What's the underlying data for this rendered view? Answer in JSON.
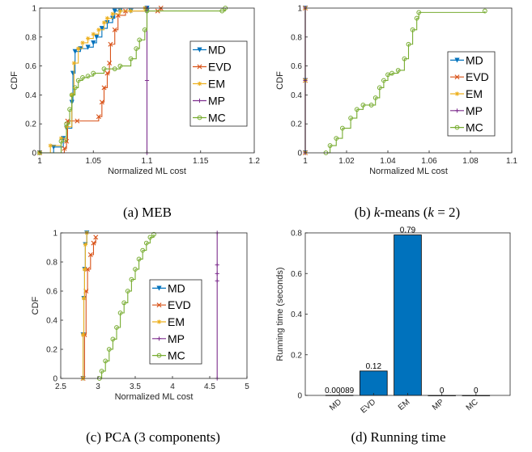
{
  "colors": {
    "MD": "#0072BD",
    "EVD": "#D95319",
    "EM": "#EDB120",
    "MP": "#7E2F8E",
    "MC": "#77AC30",
    "bar": "#0072BD"
  },
  "chart_data": [
    {
      "id": "a",
      "type": "line",
      "caption": "(a) MEB",
      "xlabel": "Normalized ML cost",
      "ylabel": "CDF",
      "xlim": [
        1,
        1.2
      ],
      "ylim": [
        0,
        1
      ],
      "xticks": [
        "1",
        "1.05",
        "1.1",
        "1.15",
        "1.2"
      ],
      "yticks": [
        "0",
        "0.2",
        "0.4",
        "0.6",
        "0.8",
        "1"
      ],
      "legend": "right",
      "series": [
        {
          "name": "MD",
          "x": [
            1.0,
            1.013,
            1.022,
            1.025,
            1.03,
            1.031,
            1.033,
            1.038,
            1.045,
            1.05,
            1.053,
            1.058,
            1.063,
            1.068,
            1.07,
            1.075,
            1.085,
            1.1,
            1.1
          ],
          "y": [
            0.0,
            0.04,
            0.1,
            0.17,
            0.35,
            0.55,
            0.7,
            0.72,
            0.73,
            0.76,
            0.8,
            0.86,
            0.9,
            0.93,
            0.98,
            0.98,
            0.98,
            0.98,
            1.0
          ]
        },
        {
          "name": "EVD",
          "x": [
            1.0,
            1.023,
            1.025,
            1.026,
            1.035,
            1.055,
            1.058,
            1.06,
            1.063,
            1.065,
            1.066,
            1.07,
            1.073,
            1.08,
            1.11,
            1.113
          ],
          "y": [
            0.0,
            0.03,
            0.08,
            0.22,
            0.22,
            0.25,
            0.35,
            0.45,
            0.55,
            0.62,
            0.75,
            0.85,
            0.95,
            0.98,
            0.98,
            1.0
          ]
        },
        {
          "name": "EM",
          "x": [
            1.0,
            1.01,
            1.02,
            1.025,
            1.03,
            1.032,
            1.036,
            1.04,
            1.045,
            1.05,
            1.055,
            1.06,
            1.063,
            1.068,
            1.075,
            1.085,
            1.098
          ],
          "y": [
            0.0,
            0.05,
            0.1,
            0.18,
            0.4,
            0.62,
            0.72,
            0.76,
            0.79,
            0.82,
            0.85,
            0.9,
            0.93,
            0.96,
            0.98,
            0.98,
            1.0
          ]
        },
        {
          "name": "MP",
          "x": [
            1.1,
            1.1,
            1.1
          ],
          "y": [
            0.0,
            0.5,
            1.0
          ]
        },
        {
          "name": "MC",
          "x": [
            1.0,
            1.02,
            1.025,
            1.028,
            1.03,
            1.033,
            1.036,
            1.04,
            1.045,
            1.05,
            1.06,
            1.07,
            1.075,
            1.085,
            1.09,
            1.093,
            1.098,
            1.1,
            1.17,
            1.173
          ],
          "y": [
            0.0,
            0.08,
            0.2,
            0.3,
            0.4,
            0.45,
            0.5,
            0.52,
            0.53,
            0.55,
            0.58,
            0.58,
            0.6,
            0.65,
            0.72,
            0.78,
            0.85,
            0.98,
            0.98,
            1.0
          ]
        }
      ]
    },
    {
      "id": "b",
      "type": "line",
      "caption": "(b) k-means (k = 2)",
      "xlabel": "Normalized ML cost",
      "ylabel": "CDF",
      "xlim": [
        1,
        1.1
      ],
      "ylim": [
        0,
        1
      ],
      "xticks": [
        "1",
        "1.02",
        "1.04",
        "1.06",
        "1.08",
        "1.1"
      ],
      "yticks": [
        "0",
        "0.2",
        "0.4",
        "0.6",
        "0.8",
        "1"
      ],
      "legend": "right",
      "series": [
        {
          "name": "MD",
          "x": [
            1.0,
            1.0,
            1.0
          ],
          "y": [
            0.0,
            0.5,
            1.0
          ]
        },
        {
          "name": "EVD",
          "x": [
            1.0,
            1.0,
            1.0
          ],
          "y": [
            0.0,
            0.5,
            1.0
          ]
        },
        {
          "name": "EM",
          "x": [
            1.0,
            1.0,
            1.0
          ],
          "y": [
            0.0,
            0.5,
            1.0
          ]
        },
        {
          "name": "MP",
          "x": [
            1.0,
            1.0,
            1.0
          ],
          "y": [
            0.0,
            0.5,
            1.0
          ]
        },
        {
          "name": "MC",
          "x": [
            1.01,
            1.012,
            1.015,
            1.018,
            1.022,
            1.025,
            1.028,
            1.032,
            1.034,
            1.036,
            1.038,
            1.04,
            1.042,
            1.045,
            1.048,
            1.05,
            1.052,
            1.054,
            1.055,
            1.087
          ],
          "y": [
            0.0,
            0.05,
            0.1,
            0.17,
            0.24,
            0.3,
            0.33,
            0.33,
            0.38,
            0.45,
            0.5,
            0.54,
            0.55,
            0.57,
            0.65,
            0.75,
            0.85,
            0.93,
            0.97,
            0.98
          ]
        }
      ]
    },
    {
      "id": "c",
      "type": "line",
      "caption": "(c) PCA (3 components)",
      "xlabel": "Normalized ML cost",
      "ylabel": "CDF",
      "xlim": [
        2.5,
        5
      ],
      "ylim": [
        0,
        1
      ],
      "xticks": [
        "2.5",
        "3",
        "3.5",
        "4",
        "4.5",
        "5"
      ],
      "yticks": [
        "0",
        "0.2",
        "0.4",
        "0.6",
        "0.8",
        "1"
      ],
      "legend": "right",
      "series": [
        {
          "name": "MD",
          "x": [
            2.8,
            2.8,
            2.81,
            2.82,
            2.83,
            2.85
          ],
          "y": [
            0.0,
            0.3,
            0.55,
            0.75,
            0.92,
            1.0
          ]
        },
        {
          "name": "EVD",
          "x": [
            2.8,
            2.82,
            2.84,
            2.86,
            2.9,
            2.94,
            2.97
          ],
          "y": [
            0.0,
            0.3,
            0.6,
            0.75,
            0.85,
            0.93,
            0.97
          ]
        },
        {
          "name": "EM",
          "x": [
            2.8,
            2.8,
            2.81,
            2.82,
            2.83,
            2.85
          ],
          "y": [
            0.0,
            0.3,
            0.55,
            0.75,
            0.92,
            1.0
          ]
        },
        {
          "name": "MP",
          "x": [
            4.6,
            4.6,
            4.6,
            4.6,
            4.6
          ],
          "y": [
            0.0,
            0.67,
            0.72,
            0.78,
            1.0
          ]
        },
        {
          "name": "MC",
          "x": [
            3.02,
            3.05,
            3.1,
            3.15,
            3.2,
            3.25,
            3.3,
            3.35,
            3.4,
            3.45,
            3.5,
            3.55,
            3.6,
            3.65,
            3.7,
            3.75
          ],
          "y": [
            0.0,
            0.05,
            0.12,
            0.2,
            0.27,
            0.35,
            0.45,
            0.52,
            0.6,
            0.68,
            0.75,
            0.82,
            0.88,
            0.93,
            0.97,
            0.99
          ]
        }
      ]
    },
    {
      "id": "d",
      "type": "bar",
      "caption": "(d) Running time",
      "ylabel": "Running time (seconds)",
      "ylim": [
        0,
        0.8
      ],
      "yticks": [
        "0",
        "0.2",
        "0.4",
        "0.6",
        "0.8"
      ],
      "categories": [
        "MD",
        "EVD",
        "EM",
        "MP",
        "MC"
      ],
      "values": [
        0.00089,
        0.12,
        0.79,
        0,
        0
      ],
      "labels": [
        "0.00089",
        "0.12",
        "0.79",
        "0",
        "0"
      ]
    }
  ]
}
